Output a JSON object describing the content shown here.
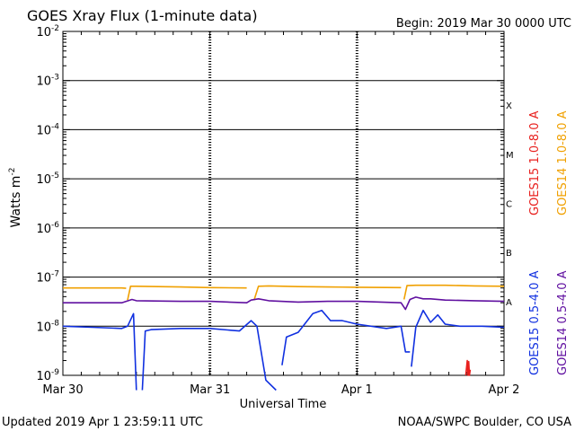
{
  "header": {
    "title": "GOES Xray Flux (1-minute data)",
    "begin": "Begin:  2019 Mar 30 0000 UTC"
  },
  "footer": {
    "updated": "Updated 2019 Apr  1 23:59:11 UTC",
    "source": "NOAA/SWPC Boulder, CO USA"
  },
  "colors": {
    "goes15_long": "#e8201e",
    "goes14_long": "#f0a000",
    "goes15_short": "#1030e0",
    "goes14_short": "#6010a0",
    "axes": "#000000"
  },
  "chart_data": {
    "type": "line",
    "title": "GOES Xray Flux (1-minute data)",
    "xlabel": "Universal Time",
    "ylabel": "Watts m",
    "ylabel_sup": "-2",
    "y_scale": "log",
    "ylim": [
      1e-09,
      0.01
    ],
    "xlim_days": [
      0,
      3
    ],
    "grid": "horizontal lines at each decade from 1e-7 upward",
    "y_ticks": [
      {
        "exp": -9,
        "base": "10",
        "sup": "-9"
      },
      {
        "exp": -8,
        "base": "10",
        "sup": "-8"
      },
      {
        "exp": -7,
        "base": "10",
        "sup": "-7"
      },
      {
        "exp": -6,
        "base": "10",
        "sup": "-6"
      },
      {
        "exp": -5,
        "base": "10",
        "sup": "-5"
      },
      {
        "exp": -4,
        "base": "10",
        "sup": "-4"
      },
      {
        "exp": -3,
        "base": "10",
        "sup": "-3"
      },
      {
        "exp": -2,
        "base": "10",
        "sup": "-2"
      }
    ],
    "x_ticks": [
      {
        "day": 0,
        "label": "Mar 30"
      },
      {
        "day": 1,
        "label": "Mar 31"
      },
      {
        "day": 2,
        "label": "Apr 1"
      },
      {
        "day": 3,
        "label": "Apr 2"
      }
    ],
    "flare_classes": [
      {
        "label": "A",
        "exp": -7.5
      },
      {
        "label": "B",
        "exp": -6.5
      },
      {
        "label": "C",
        "exp": -5.5
      },
      {
        "label": "M",
        "exp": -4.5
      },
      {
        "label": "X",
        "exp": -3.5
      }
    ],
    "legend_placement": "right, vertical",
    "series": [
      {
        "name": "GOES15 1.0-8.0 A",
        "color_key": "goes15_long",
        "segments": [
          {
            "x": [
              2.74,
              2.75,
              2.755,
              2.76,
              2.765,
              2.77
            ],
            "y": [
              1e-09,
              2e-09,
              1e-09,
              1.9e-09,
              1e-09,
              1.3e-09
            ]
          }
        ]
      },
      {
        "name": "GOES14 1.0-8.0 A",
        "color_key": "goes14_long",
        "segments": [
          {
            "x": [
              0.0,
              0.2,
              0.4,
              0.43
            ],
            "y": [
              6e-08,
              6e-08,
              6e-08,
              5.9e-08
            ]
          },
          {
            "x": [
              0.44,
              0.46,
              0.5,
              0.8,
              1.0,
              1.25
            ],
            "y": [
              3.4e-08,
              6.5e-08,
              6.5e-08,
              6.3e-08,
              6.1e-08,
              6e-08
            ]
          },
          {
            "x": [
              1.3,
              1.33,
              1.4,
              1.6,
              1.8,
              2.0,
              2.3
            ],
            "y": [
              3.4e-08,
              6.5e-08,
              6.6e-08,
              6.4e-08,
              6.3e-08,
              6.2e-08,
              6.1e-08
            ]
          },
          {
            "x": [
              2.32,
              2.34,
              2.4,
              2.6,
              2.8,
              3.0
            ],
            "y": [
              3.5e-08,
              6.7e-08,
              6.8e-08,
              6.8e-08,
              6.6e-08,
              6.5e-08
            ]
          }
        ]
      },
      {
        "name": "GOES15 0.5-4.0 A",
        "color_key": "goes15_short",
        "segments": [
          {
            "x": [
              0.0,
              0.2,
              0.4,
              0.44,
              0.48,
              0.5
            ],
            "y": [
              1e-08,
              9.5e-09,
              9e-09,
              1e-08,
              1.8e-08,
              5e-10
            ]
          },
          {
            "x": [
              0.54,
              0.56,
              0.6,
              0.8,
              1.0,
              1.2,
              1.28,
              1.32,
              1.38,
              1.45
            ],
            "y": [
              5e-10,
              8e-09,
              8.5e-09,
              9e-09,
              9e-09,
              8e-09,
              1.3e-08,
              1e-08,
              8e-10,
              5e-10
            ]
          },
          {
            "x": [
              1.49,
              1.52,
              1.6,
              1.7,
              1.76,
              1.82,
              1.9,
              2.0,
              2.2,
              2.3,
              2.33,
              2.36
            ],
            "y": [
              1.6e-09,
              6e-09,
              7.5e-09,
              1.8e-08,
              2.1e-08,
              1.3e-08,
              1.3e-08,
              1.1e-08,
              9e-09,
              1e-08,
              3e-09,
              3e-09
            ]
          },
          {
            "x": [
              2.37,
              2.4,
              2.45,
              2.5,
              2.55,
              2.6,
              2.7,
              2.85,
              3.0
            ],
            "y": [
              1.5e-09,
              9.5e-09,
              2.1e-08,
              1.2e-08,
              1.7e-08,
              1.1e-08,
              1e-08,
              1e-08,
              9.5e-09
            ]
          }
        ]
      },
      {
        "name": "GOES14 0.5-4.0 A",
        "color_key": "goes14_short",
        "segments": [
          {
            "x": [
              0.0,
              0.2,
              0.4,
              0.43,
              0.47,
              0.5,
              0.8,
              1.0,
              1.25,
              1.28,
              1.33,
              1.4,
              1.6,
              1.8,
              2.0,
              2.3,
              2.33,
              2.36,
              2.4,
              2.45,
              2.5,
              2.6,
              2.8,
              3.0
            ],
            "y": [
              3e-08,
              3e-08,
              3e-08,
              3.2e-08,
              3.5e-08,
              3.3e-08,
              3.2e-08,
              3.2e-08,
              3e-08,
              3.4e-08,
              3.6e-08,
              3.3e-08,
              3.1e-08,
              3.2e-08,
              3.2e-08,
              3e-08,
              2.2e-08,
              3.5e-08,
              3.9e-08,
              3.6e-08,
              3.6e-08,
              3.4e-08,
              3.3e-08,
              3.2e-08
            ]
          }
        ]
      }
    ]
  }
}
